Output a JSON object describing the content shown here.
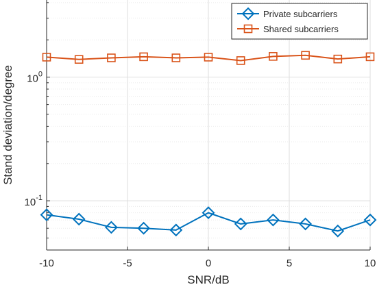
{
  "chart_data": {
    "type": "line",
    "x": [
      -10,
      -8,
      -6,
      -4,
      -2,
      0,
      2,
      4,
      6,
      8,
      10
    ],
    "series": [
      {
        "name": "Private subcarriers",
        "color": "#0072BD",
        "marker": "diamond",
        "values": [
          0.077,
          0.071,
          0.061,
          0.06,
          0.058,
          0.08,
          0.065,
          0.07,
          0.065,
          0.057,
          0.07
        ]
      },
      {
        "name": "Shared subcarriers",
        "color": "#D95319",
        "marker": "square",
        "values": [
          1.45,
          1.39,
          1.43,
          1.46,
          1.43,
          1.45,
          1.36,
          1.47,
          1.5,
          1.4,
          1.46
        ]
      }
    ],
    "xlabel": "SNR/dB",
    "ylabel": "Stand deviation/degree",
    "xlim": [
      -10,
      10
    ],
    "ylim": [
      0.04,
      4.2
    ],
    "yscale": "log",
    "x_ticks": [
      -10,
      -5,
      0,
      5,
      10
    ],
    "x_tick_labels": [
      "-10",
      "-5",
      "0",
      "5",
      "10"
    ],
    "y_ticks": [
      0.1,
      1
    ],
    "y_tick_labels": [
      {
        "base": "10",
        "exp": "-1"
      },
      {
        "base": "10",
        "exp": "0"
      }
    ],
    "grid": true,
    "minor_grid": true,
    "legend_position": "top-right"
  }
}
